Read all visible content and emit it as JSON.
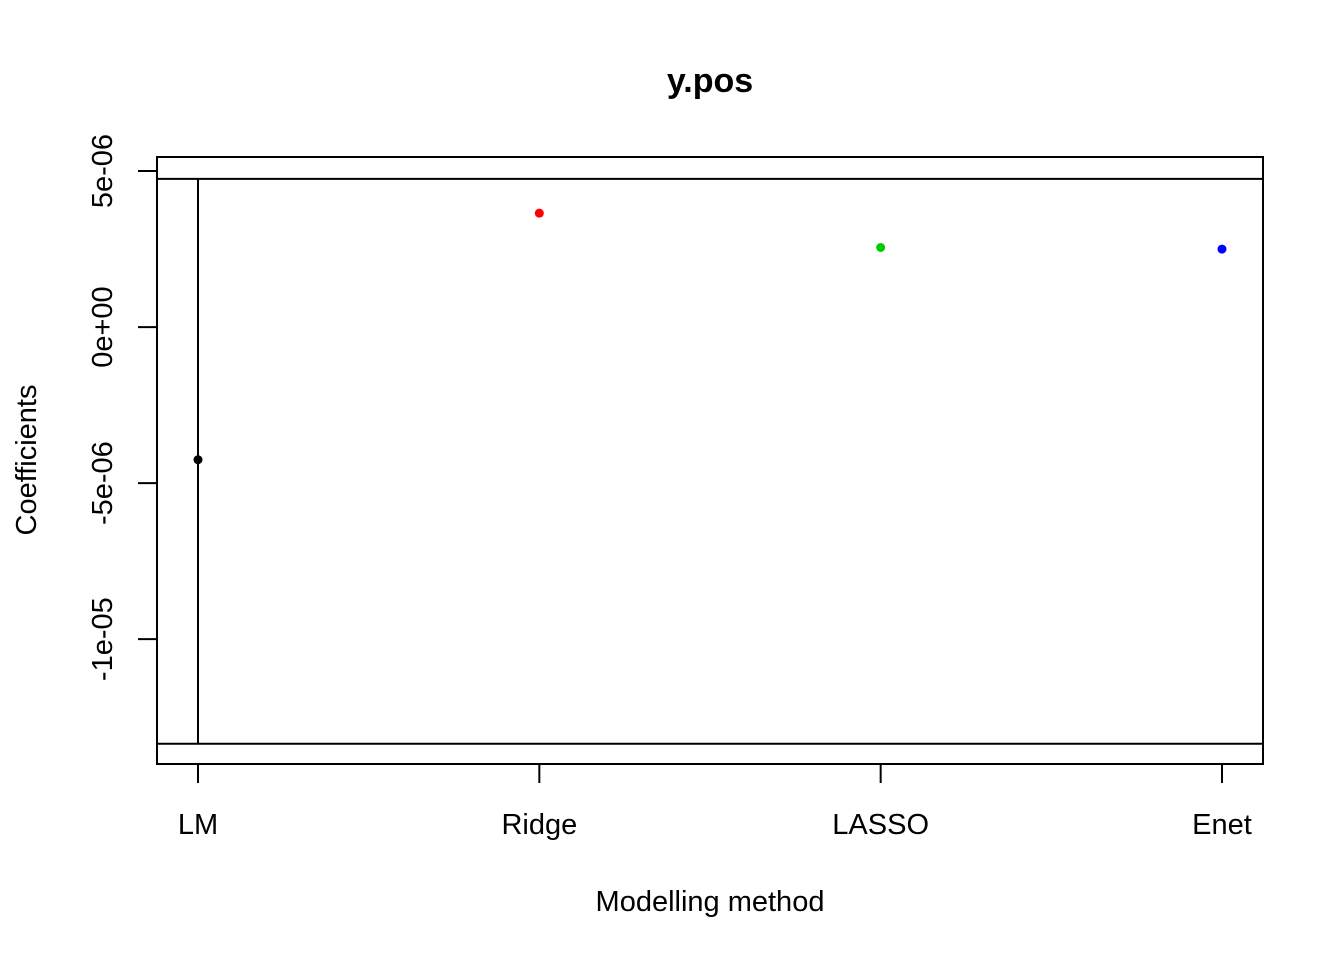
{
  "chart_data": {
    "type": "scatter",
    "title": "y.pos",
    "xlabel": "Modelling method",
    "ylabel": "Coefficients",
    "categories": [
      "LM",
      "Ridge",
      "LASSO",
      "Enet"
    ],
    "points": [
      {
        "category": "LM",
        "value": -4.25e-06,
        "color": "#000000"
      },
      {
        "category": "Ridge",
        "value": 3.65e-06,
        "color": "#ff0000"
      },
      {
        "category": "LASSO",
        "value": 2.55e-06,
        "color": "#00cd00"
      },
      {
        "category": "Enet",
        "value": 2.5e-06,
        "color": "#0000ff"
      }
    ],
    "error_bar": {
      "category": "LM",
      "lower": -1.335e-05,
      "upper": 4.75e-06
    },
    "reference_lines": [
      4.75e-06,
      -1.335e-05
    ],
    "y_ticks": [
      {
        "value": 5e-06,
        "label": "5e-06"
      },
      {
        "value": 0,
        "label": "0e+00"
      },
      {
        "value": -5e-06,
        "label": "-5e-06"
      },
      {
        "value": -1e-05,
        "label": "-1e-05"
      }
    ],
    "ylim": [
      -1.4e-05,
      5.45e-06
    ],
    "grid": false
  }
}
